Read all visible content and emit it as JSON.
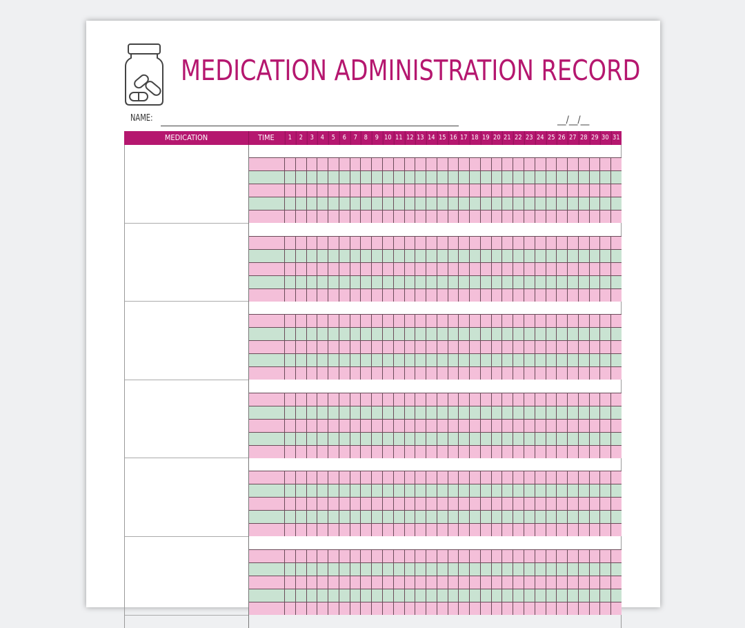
{
  "title": "MEDICATION ADMINISTRATION RECORD",
  "icon": "pill-bottle-icon",
  "name_label": "NAME:",
  "date_field": "__/__/__",
  "table": {
    "headers": {
      "medication": "MEDICATION",
      "time": "TIME"
    },
    "days": [
      "1",
      "2",
      "3",
      "4",
      "5",
      "6",
      "7",
      "8",
      "9",
      "10",
      "11",
      "12",
      "13",
      "14",
      "15",
      "16",
      "17",
      "18",
      "19",
      "20",
      "21",
      "22",
      "23",
      "24",
      "25",
      "26",
      "27",
      "28",
      "29",
      "30",
      "31"
    ],
    "medication_blocks": 6,
    "time_rows_per_block": 5,
    "row_colors": [
      "#f4bfd9",
      "#c9e3d2",
      "#f4bfd9",
      "#c9e3d2",
      "#f4bfd9"
    ]
  },
  "colors": {
    "accent": "#b5176f",
    "pink_row": "#f4bfd9",
    "green_row": "#c9e3d2"
  }
}
